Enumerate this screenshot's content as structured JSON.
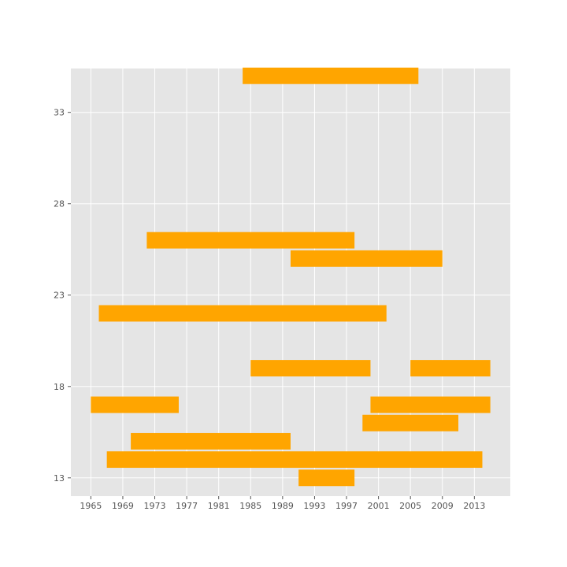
{
  "chart_data": {
    "type": "bar",
    "orientation": "horizontal-ranges",
    "title": "",
    "xlabel": "",
    "ylabel": "",
    "xlim": [
      1962.5,
      2017.5
    ],
    "ylim": [
      12,
      35.4
    ],
    "x_ticks": [
      1965,
      1969,
      1973,
      1977,
      1981,
      1985,
      1989,
      1993,
      1997,
      2001,
      2005,
      2009,
      2013
    ],
    "y_ticks": [
      13,
      18,
      23,
      28,
      33
    ],
    "grid": true,
    "bar_height": 0.9,
    "color": "#ffa500",
    "background": "#e5e5e5",
    "bars": [
      {
        "y": 13,
        "start": 1991,
        "end": 1998
      },
      {
        "y": 14,
        "start": 1967,
        "end": 2014
      },
      {
        "y": 15,
        "start": 1970,
        "end": 1990
      },
      {
        "y": 16,
        "start": 1999,
        "end": 2011
      },
      {
        "y": 17,
        "start": 1965,
        "end": 1976
      },
      {
        "y": 17,
        "start": 2000,
        "end": 2015
      },
      {
        "y": 19,
        "start": 1985,
        "end": 2000
      },
      {
        "y": 19,
        "start": 2005,
        "end": 2015
      },
      {
        "y": 22,
        "start": 1966,
        "end": 2002
      },
      {
        "y": 25,
        "start": 1990,
        "end": 2009
      },
      {
        "y": 26,
        "start": 1972,
        "end": 1998
      },
      {
        "y": 35,
        "start": 1984,
        "end": 2006
      }
    ]
  }
}
